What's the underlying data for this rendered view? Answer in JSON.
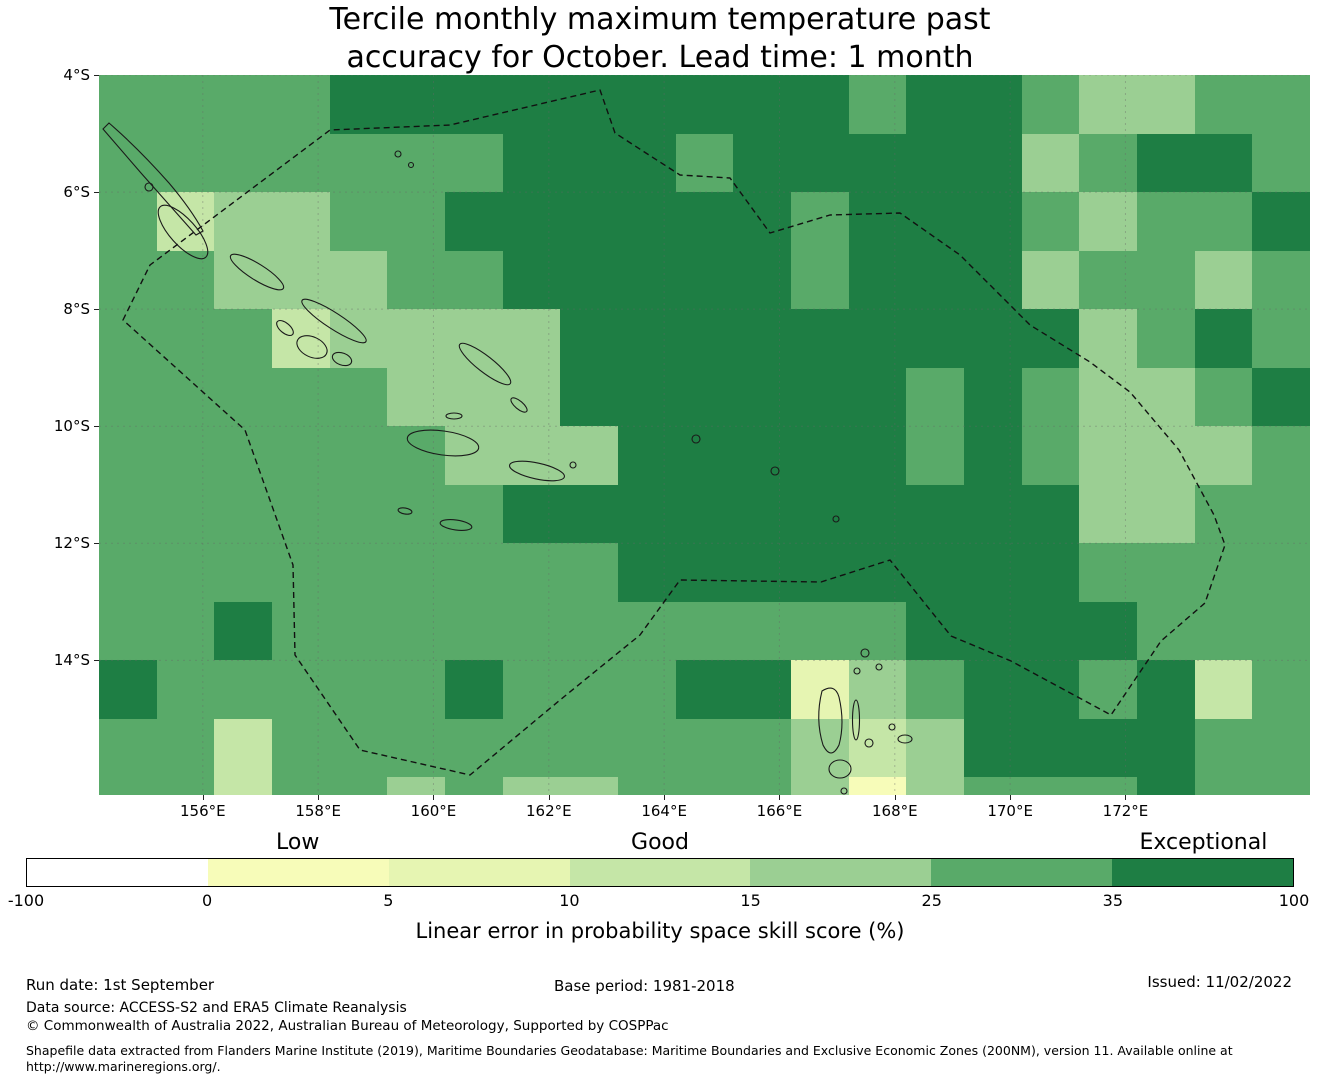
{
  "title": {
    "line1": "Tercile monthly maximum temperature past",
    "line2": "accuracy for October. Lead time: 1 month"
  },
  "legend": {
    "qualitative_labels": [
      "Low",
      "Good",
      "Exceptional"
    ],
    "tick_labels": [
      "-100",
      "0",
      "5",
      "10",
      "15",
      "25",
      "35",
      "100"
    ],
    "axis_label": "Linear error in probability space skill score (%)",
    "segment_colors": [
      "#ffffff",
      "#f7fcb9",
      "#e6f5b2",
      "#c5e6a7",
      "#9bcf93",
      "#59aa69",
      "#1e7e44"
    ]
  },
  "footer": {
    "run_date": "Run date: 1st September",
    "base_period": "Base period: 1981-2018",
    "issued": "Issued: 11/02/2022",
    "data_source": "Data source: ACCESS-S2 and ERA5 Climate Reanalysis",
    "copyright": "© Commonwealth of Australia 2022, Australian Bureau of Meteorology, Supported by COSPPac",
    "shapefile_line1": "Shapefile data extracted from Flanders Marine Institute (2019), Maritime Boundaries Geodatabase: Maritime Boundaries and Exclusive Economic Zones (200NM), version 11. Available online at",
    "shapefile_line2": "http://www.marineregions.org/."
  },
  "chart_data": {
    "type": "heatmap",
    "title": "Tercile monthly maximum temperature past accuracy for October. Lead time: 1 month",
    "x_ticks": [
      "156°E",
      "158°E",
      "160°E",
      "162°E",
      "164°E",
      "166°E",
      "168°E",
      "170°E",
      "172°E"
    ],
    "y_ticks": [
      "4°S",
      "6°S",
      "8°S",
      "10°S",
      "12°S",
      "14°S"
    ],
    "lon_min": 154.2,
    "lon_max": 175.2,
    "lat_max": -4,
    "lat_min": -16.3,
    "cell_size_degrees": 1,
    "value_units": "Linear error in probability space skill score (%)",
    "value_bins": {
      "W": "-100 to 0 (Low)",
      "F": "0 to 5 (Low)",
      "E": "5 to 10",
      "D": "10 to 15 (Good)",
      "C": "15 to 25 (Good)",
      "B": "25 to 35",
      "A": "35 to 100 (Exceptional)"
    },
    "palette": {
      "W": "#ffffff",
      "F": "#f7fcb9",
      "E": "#e6f5b2",
      "D": "#c5e6a7",
      "C": "#9bcf93",
      "B": "#59aa69",
      "A": "#1e7e44"
    },
    "grid": [
      "BBBBAAAAAAAAABAABCCBB",
      "BBBBBBBAAABAAAAACBAAB",
      "BDCCBBAAAAAABAAABCBBA",
      "BBCCCBBAAAAABAAACBBCB",
      "BBBDCCCCAAAAAAAAACBAB",
      "BBBBBCCCAAAAAABABCCBA",
      "BBBBBBCCCAAAAABABCCCB",
      "BBBBBBBAAAAAAAAAACCBB",
      "BBBBBBBBBAAAAAAAABBBB",
      "BBABBBBBBBBBBBAAAABBB",
      "ABBBBBABBBAAECBAABADB",
      "BBDBBBBBBBBBCDCAAAABB",
      "BBDBBCBCCBBBCFCBBBABB"
    ]
  }
}
